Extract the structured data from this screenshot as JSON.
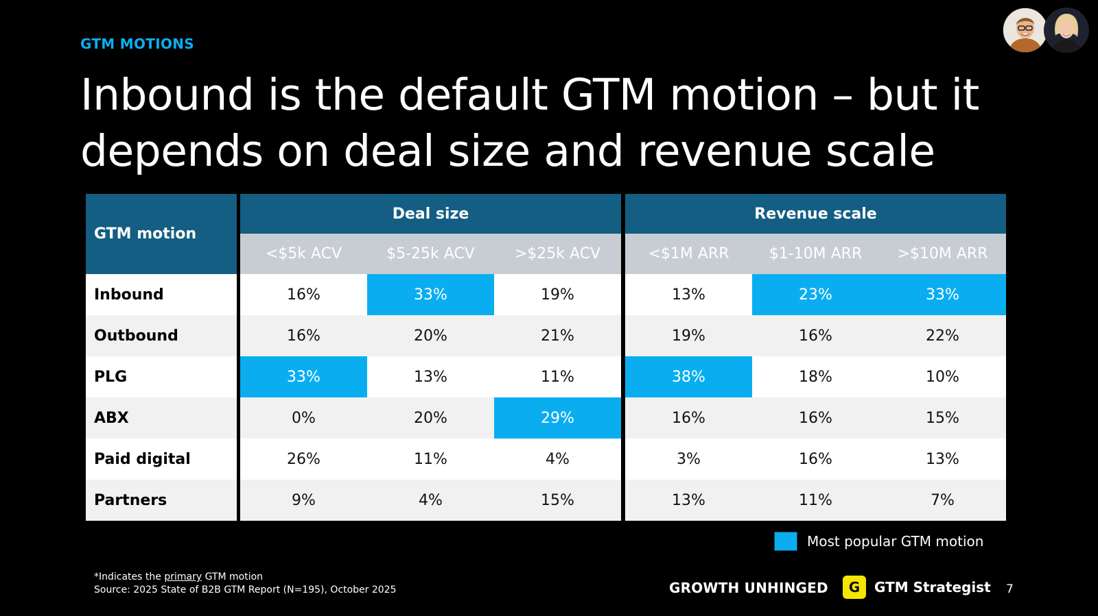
{
  "header": {
    "kicker": "GTM MOTIONS",
    "title": "Inbound is the default GTM motion – but it depends on deal size and revenue scale"
  },
  "table": {
    "corner_label": "GTM motion",
    "groups": [
      "Deal size",
      "Revenue scale"
    ],
    "columns": [
      "<$5k ACV",
      "$5-25k ACV",
      ">$25k ACV",
      "<$1M ARR",
      "$1-10M ARR",
      ">$10M ARR"
    ],
    "rows": [
      {
        "label": "Inbound",
        "values": [
          "16%",
          "33%",
          "19%",
          "13%",
          "23%",
          "33%"
        ],
        "highlight": [
          false,
          true,
          false,
          false,
          true,
          true
        ]
      },
      {
        "label": "Outbound",
        "values": [
          "16%",
          "20%",
          "21%",
          "19%",
          "16%",
          "22%"
        ],
        "highlight": [
          false,
          false,
          false,
          false,
          false,
          false
        ]
      },
      {
        "label": "PLG",
        "values": [
          "33%",
          "13%",
          "11%",
          "38%",
          "18%",
          "10%"
        ],
        "highlight": [
          true,
          false,
          false,
          true,
          false,
          false
        ]
      },
      {
        "label": "ABX",
        "values": [
          "0%",
          "20%",
          "29%",
          "16%",
          "16%",
          "15%"
        ],
        "highlight": [
          false,
          false,
          true,
          false,
          false,
          false
        ]
      },
      {
        "label": "Paid digital",
        "values": [
          "26%",
          "11%",
          "4%",
          "3%",
          "16%",
          "13%"
        ],
        "highlight": [
          false,
          false,
          false,
          false,
          false,
          false
        ]
      },
      {
        "label": "Partners",
        "values": [
          "9%",
          "4%",
          "15%",
          "13%",
          "11%",
          "7%"
        ],
        "highlight": [
          false,
          false,
          false,
          false,
          false,
          false
        ]
      }
    ]
  },
  "legend": {
    "label": "Most popular GTM motion"
  },
  "footnote": {
    "line1_prefix": "*Indicates the ",
    "line1_underlined": "primary",
    "line1_suffix": " GTM motion",
    "line2": "Source: 2025 State of B2B GTM Report (N=195), October 2025"
  },
  "footer": {
    "brand1": "GROWTH UNHINGED",
    "brand2": "GTM Strategist",
    "brand2_logo_letter": "G",
    "page_number": "7"
  },
  "colors": {
    "highlight": "#0aaef0",
    "header_band": "#135e82",
    "subheader": "#c8cdd4",
    "kicker": "#0aaef0",
    "brand_logo": "#f5e600"
  }
}
